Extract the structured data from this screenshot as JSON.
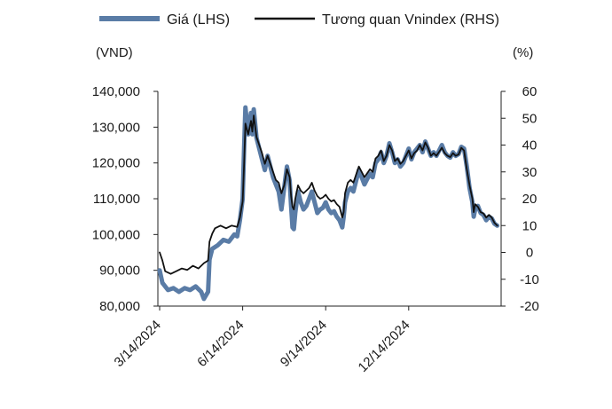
{
  "chart_data": {
    "type": "line",
    "title": "",
    "legend": {
      "placement": "top",
      "entries": [
        "Giá (LHS)",
        "Tương quan Vnindex (RHS)"
      ]
    },
    "y_left": {
      "unit_label": "(VND)",
      "ylim": [
        80000,
        140000
      ],
      "ticks": [
        "140,000",
        "130,000",
        "120,000",
        "110,000",
        "100,000",
        "90,000",
        "80,000"
      ],
      "tick_values": [
        140000,
        130000,
        120000,
        110000,
        100000,
        90000,
        80000
      ]
    },
    "y_right": {
      "unit_label": "(%)",
      "ylim": [
        -20,
        60
      ],
      "ticks": [
        "60",
        "50",
        "40",
        "30",
        "20",
        "10",
        "0",
        "-10",
        "-20"
      ],
      "tick_values": [
        60,
        50,
        40,
        30,
        20,
        10,
        0,
        -10,
        -20
      ]
    },
    "x": {
      "tick_labels": [
        "3/14/2024",
        "6/14/2024",
        "9/14/2024",
        "12/14/2024"
      ],
      "tick_months": [
        0,
        3,
        6,
        9
      ],
      "range_months": [
        0,
        12.4
      ]
    },
    "grid": false,
    "series": [
      {
        "name": "Giá (LHS)",
        "axis": "left",
        "color": "#5a7ca6",
        "points": [
          [
            0.0,
            90000
          ],
          [
            0.1,
            86500
          ],
          [
            0.3,
            84500
          ],
          [
            0.5,
            85000
          ],
          [
            0.7,
            84000
          ],
          [
            0.9,
            85000
          ],
          [
            1.1,
            84500
          ],
          [
            1.3,
            85500
          ],
          [
            1.5,
            84000
          ],
          [
            1.6,
            82000
          ],
          [
            1.75,
            84000
          ],
          [
            1.8,
            93000
          ],
          [
            1.9,
            96000
          ],
          [
            2.1,
            97000
          ],
          [
            2.3,
            98500
          ],
          [
            2.5,
            98000
          ],
          [
            2.7,
            100000
          ],
          [
            2.8,
            99500
          ],
          [
            2.9,
            104000
          ],
          [
            3.0,
            110000
          ],
          [
            3.05,
            124000
          ],
          [
            3.1,
            135500
          ],
          [
            3.2,
            128000
          ],
          [
            3.3,
            134000
          ],
          [
            3.35,
            128000
          ],
          [
            3.4,
            135000
          ],
          [
            3.5,
            127000
          ],
          [
            3.6,
            124000
          ],
          [
            3.7,
            121000
          ],
          [
            3.8,
            118000
          ],
          [
            3.9,
            122000
          ],
          [
            4.0,
            119000
          ],
          [
            4.1,
            116000
          ],
          [
            4.2,
            114000
          ],
          [
            4.3,
            112000
          ],
          [
            4.4,
            107000
          ],
          [
            4.5,
            113000
          ],
          [
            4.6,
            119000
          ],
          [
            4.7,
            115000
          ],
          [
            4.75,
            108000
          ],
          [
            4.8,
            102000
          ],
          [
            4.85,
            101500
          ],
          [
            4.9,
            106000
          ],
          [
            5.0,
            112000
          ],
          [
            5.1,
            109000
          ],
          [
            5.2,
            107000
          ],
          [
            5.3,
            108000
          ],
          [
            5.4,
            110000
          ],
          [
            5.5,
            112000
          ],
          [
            5.6,
            109000
          ],
          [
            5.7,
            106000
          ],
          [
            5.8,
            107000
          ],
          [
            5.9,
            107500
          ],
          [
            6.0,
            109000
          ],
          [
            6.1,
            107000
          ],
          [
            6.2,
            106000
          ],
          [
            6.3,
            106500
          ],
          [
            6.4,
            105000
          ],
          [
            6.5,
            104000
          ],
          [
            6.6,
            102000
          ],
          [
            6.65,
            105000
          ],
          [
            6.7,
            109000
          ],
          [
            6.8,
            112000
          ],
          [
            6.9,
            113000
          ],
          [
            7.0,
            112000
          ],
          [
            7.1,
            115000
          ],
          [
            7.2,
            118000
          ],
          [
            7.3,
            116000
          ],
          [
            7.4,
            114000
          ],
          [
            7.5,
            115500
          ],
          [
            7.6,
            117000
          ],
          [
            7.7,
            116000
          ],
          [
            7.8,
            120000
          ],
          [
            7.9,
            121000
          ],
          [
            8.0,
            123000
          ],
          [
            8.1,
            120000
          ],
          [
            8.2,
            122000
          ],
          [
            8.3,
            125500
          ],
          [
            8.4,
            123000
          ],
          [
            8.5,
            120000
          ],
          [
            8.6,
            121000
          ],
          [
            8.7,
            119000
          ],
          [
            8.8,
            120000
          ],
          [
            8.9,
            122000
          ],
          [
            9.0,
            124000
          ],
          [
            9.1,
            121000
          ],
          [
            9.2,
            123000
          ],
          [
            9.3,
            124000
          ],
          [
            9.4,
            125000
          ],
          [
            9.5,
            123000
          ],
          [
            9.6,
            126000
          ],
          [
            9.7,
            124000
          ],
          [
            9.8,
            122000
          ],
          [
            9.9,
            123000
          ],
          [
            10.0,
            122000
          ],
          [
            10.1,
            123500
          ],
          [
            10.2,
            125000
          ],
          [
            10.3,
            123000
          ],
          [
            10.4,
            122000
          ],
          [
            10.5,
            121500
          ],
          [
            10.6,
            123000
          ],
          [
            10.7,
            122000
          ],
          [
            10.8,
            122500
          ],
          [
            10.9,
            124500
          ],
          [
            11.0,
            124000
          ],
          [
            11.1,
            119000
          ],
          [
            11.2,
            113000
          ],
          [
            11.3,
            109000
          ],
          [
            11.35,
            105000
          ],
          [
            11.4,
            107000
          ],
          [
            11.5,
            108000
          ],
          [
            11.6,
            106000
          ],
          [
            11.7,
            105500
          ],
          [
            11.8,
            104000
          ],
          [
            11.9,
            105000
          ],
          [
            12.0,
            104500
          ],
          [
            12.1,
            103000
          ],
          [
            12.2,
            102500
          ]
        ]
      },
      {
        "name": "Tương quan Vnindex (RHS)",
        "axis": "right",
        "color": "#111111",
        "points": [
          [
            0.0,
            0
          ],
          [
            0.1,
            -3
          ],
          [
            0.2,
            -7
          ],
          [
            0.4,
            -8
          ],
          [
            0.6,
            -7
          ],
          [
            0.8,
            -6
          ],
          [
            1.0,
            -6.5
          ],
          [
            1.2,
            -5
          ],
          [
            1.4,
            -6
          ],
          [
            1.6,
            -4
          ],
          [
            1.75,
            -3
          ],
          [
            1.8,
            4
          ],
          [
            1.9,
            7
          ],
          [
            2.0,
            9
          ],
          [
            2.2,
            10
          ],
          [
            2.4,
            9
          ],
          [
            2.6,
            10
          ],
          [
            2.8,
            9.5
          ],
          [
            2.9,
            13
          ],
          [
            3.0,
            19
          ],
          [
            3.05,
            33
          ],
          [
            3.1,
            48
          ],
          [
            3.2,
            44
          ],
          [
            3.3,
            49
          ],
          [
            3.35,
            45
          ],
          [
            3.4,
            51
          ],
          [
            3.5,
            43
          ],
          [
            3.6,
            40
          ],
          [
            3.7,
            37
          ],
          [
            3.8,
            33
          ],
          [
            3.9,
            36
          ],
          [
            4.0,
            33
          ],
          [
            4.1,
            30
          ],
          [
            4.2,
            27
          ],
          [
            4.3,
            26
          ],
          [
            4.4,
            22
          ],
          [
            4.5,
            25
          ],
          [
            4.6,
            31
          ],
          [
            4.7,
            28
          ],
          [
            4.75,
            21
          ],
          [
            4.8,
            17
          ],
          [
            4.85,
            16
          ],
          [
            4.9,
            20
          ],
          [
            5.0,
            25
          ],
          [
            5.1,
            23
          ],
          [
            5.2,
            22
          ],
          [
            5.3,
            23
          ],
          [
            5.4,
            24
          ],
          [
            5.5,
            26
          ],
          [
            5.6,
            23
          ],
          [
            5.7,
            21
          ],
          [
            5.8,
            20
          ],
          [
            5.9,
            20.5
          ],
          [
            6.0,
            21.5
          ],
          [
            6.1,
            20
          ],
          [
            6.2,
            19
          ],
          [
            6.3,
            19.5
          ],
          [
            6.4,
            18
          ],
          [
            6.5,
            17
          ],
          [
            6.6,
            13
          ],
          [
            6.65,
            15
          ],
          [
            6.7,
            22
          ],
          [
            6.8,
            26
          ],
          [
            6.9,
            27
          ],
          [
            7.0,
            26
          ],
          [
            7.1,
            29
          ],
          [
            7.2,
            32
          ],
          [
            7.3,
            30
          ],
          [
            7.4,
            28
          ],
          [
            7.5,
            29.5
          ],
          [
            7.6,
            31
          ],
          [
            7.7,
            30
          ],
          [
            7.8,
            35
          ],
          [
            7.9,
            36
          ],
          [
            8.0,
            38
          ],
          [
            8.1,
            34
          ],
          [
            8.2,
            36
          ],
          [
            8.3,
            40
          ],
          [
            8.4,
            38
          ],
          [
            8.5,
            34
          ],
          [
            8.6,
            35
          ],
          [
            8.7,
            33
          ],
          [
            8.8,
            34
          ],
          [
            8.9,
            36
          ],
          [
            9.0,
            38
          ],
          [
            9.1,
            35
          ],
          [
            9.2,
            37
          ],
          [
            9.3,
            38
          ],
          [
            9.4,
            40
          ],
          [
            9.5,
            38
          ],
          [
            9.6,
            41
          ],
          [
            9.7,
            39
          ],
          [
            9.8,
            36
          ],
          [
            9.9,
            37
          ],
          [
            10.0,
            36
          ],
          [
            10.1,
            37.5
          ],
          [
            10.2,
            39
          ],
          [
            10.3,
            37
          ],
          [
            10.4,
            36
          ],
          [
            10.5,
            35.5
          ],
          [
            10.6,
            37
          ],
          [
            10.7,
            36
          ],
          [
            10.8,
            36.5
          ],
          [
            10.9,
            39
          ],
          [
            11.0,
            38
          ],
          [
            11.1,
            31
          ],
          [
            11.2,
            25
          ],
          [
            11.3,
            20
          ],
          [
            11.35,
            15
          ],
          [
            11.4,
            18
          ],
          [
            11.5,
            17
          ],
          [
            11.6,
            15
          ],
          [
            11.7,
            14.5
          ],
          [
            11.8,
            13
          ],
          [
            11.9,
            14
          ],
          [
            12.0,
            13
          ],
          [
            12.1,
            11
          ],
          [
            12.2,
            10
          ]
        ]
      }
    ]
  }
}
